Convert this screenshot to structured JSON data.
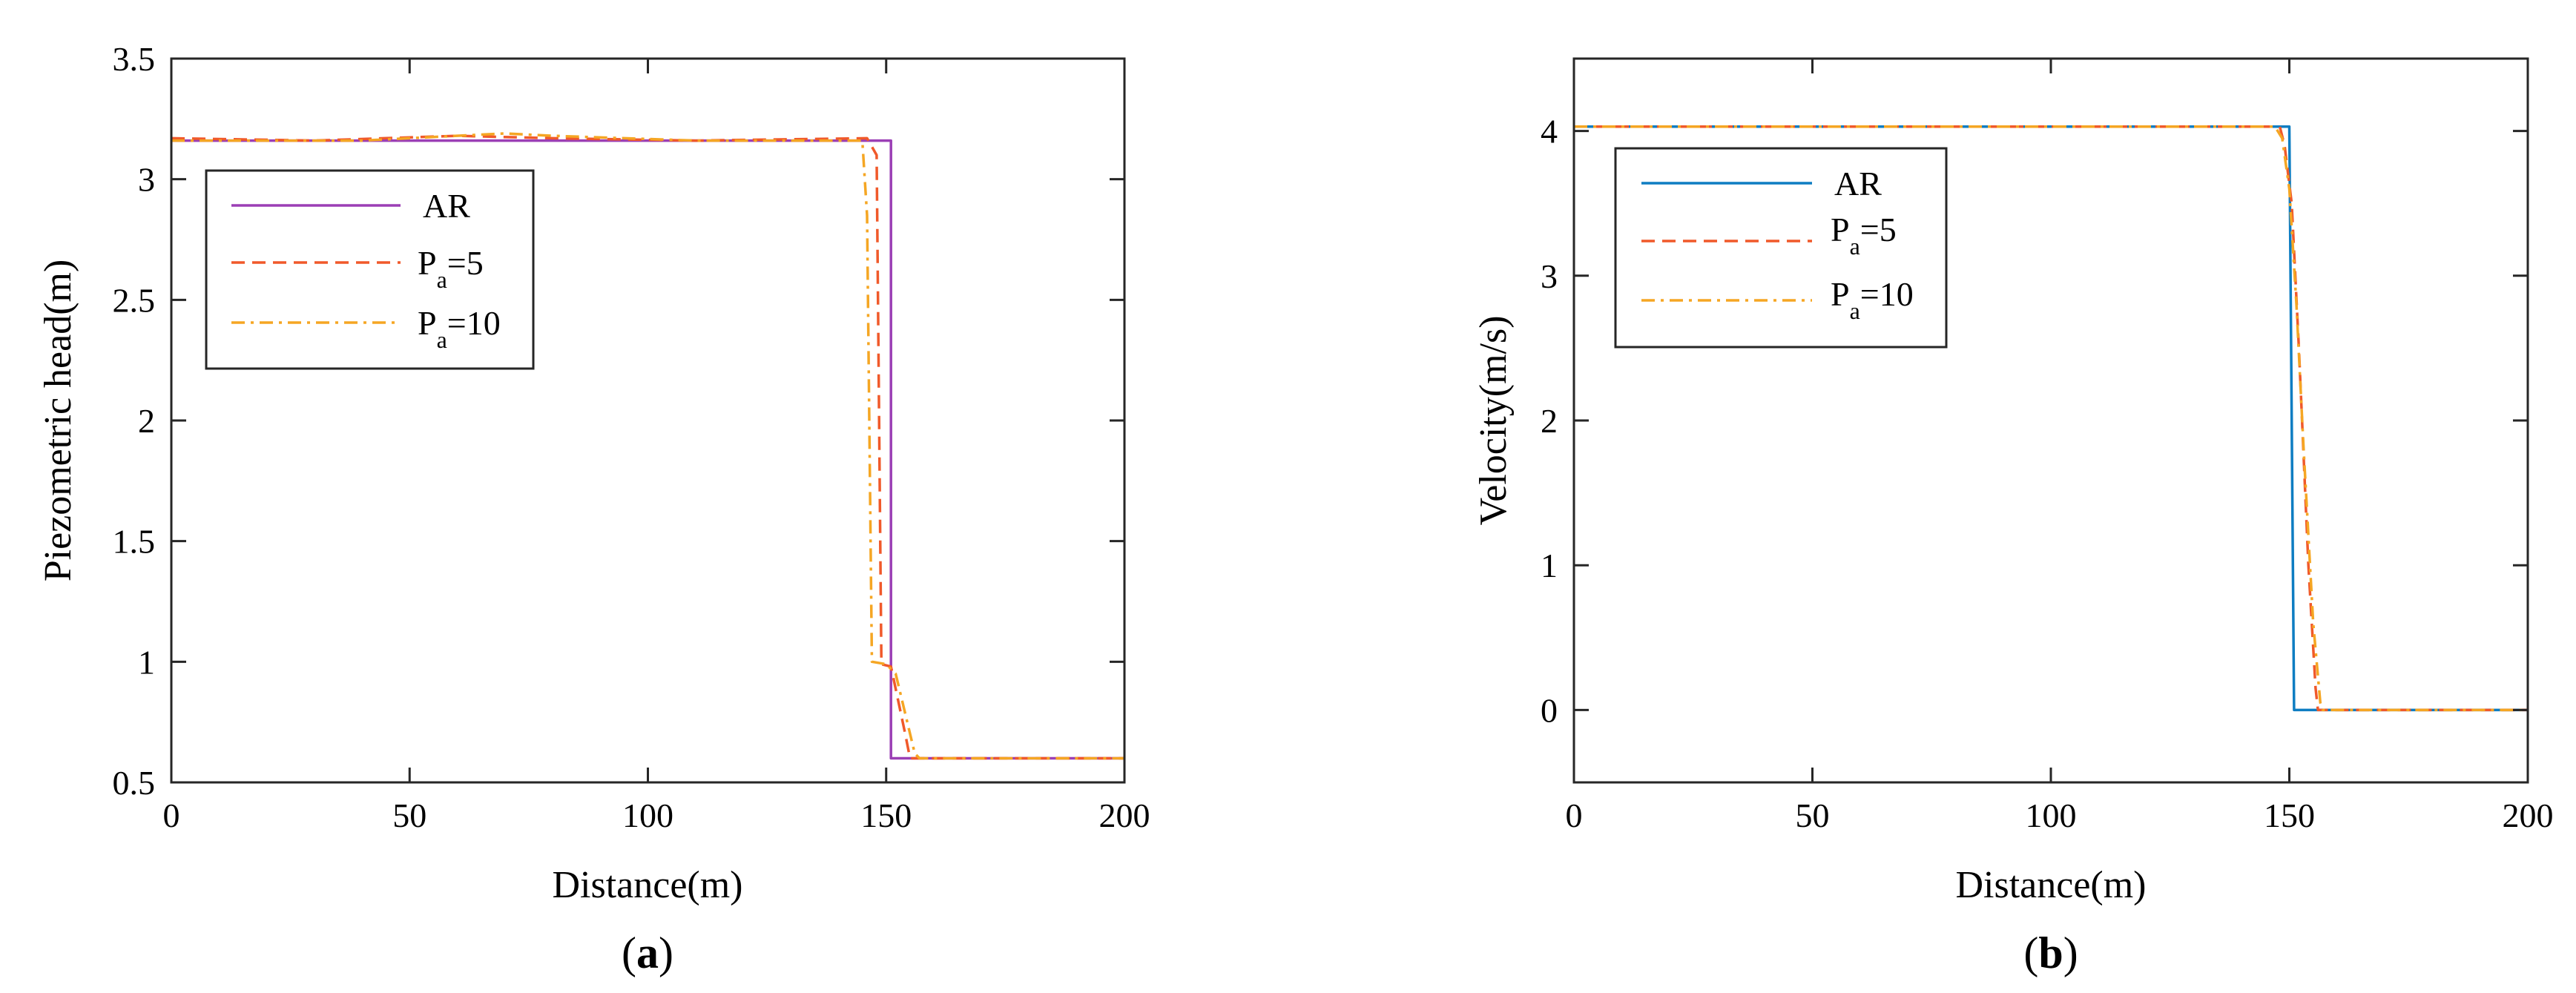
{
  "chart_data": [
    {
      "panel_label": "a",
      "type": "line",
      "xlabel": "Distance(m)",
      "ylabel": "Piezometric head(m)",
      "xlim": [
        0,
        200
      ],
      "ylim": [
        0.5,
        3.5
      ],
      "xticks": [
        0,
        50,
        100,
        150,
        200
      ],
      "yticks": [
        0.5,
        1,
        1.5,
        2,
        2.5,
        3,
        3.5
      ],
      "xtick_labels": [
        "0",
        "50",
        "100",
        "150",
        "200"
      ],
      "ytick_labels": [
        "0.5",
        "1",
        "1.5",
        "2",
        "2.5",
        "3",
        "3.5"
      ],
      "grid": false,
      "legend_position": "upper-left",
      "series": [
        {
          "legend_main": "AR",
          "legend_sub": "",
          "legend_tail": "",
          "color": "#9b3fb5",
          "dash": "solid",
          "points": [
            [
              0,
              3.16
            ],
            [
              151,
              3.16
            ],
            [
              151,
              0.6
            ],
            [
              200,
              0.6
            ]
          ]
        },
        {
          "legend_main": "P",
          "legend_sub": "a",
          "legend_tail": "=5",
          "color": "#f0592a",
          "dash": "dashed",
          "points": [
            [
              0,
              3.17
            ],
            [
              30,
              3.16
            ],
            [
              60,
              3.18
            ],
            [
              80,
              3.17
            ],
            [
              110,
              3.16
            ],
            [
              146,
              3.17
            ],
            [
              148,
              3.1
            ],
            [
              149,
              0.99
            ],
            [
              151,
              0.98
            ],
            [
              154,
              0.7
            ],
            [
              155,
              0.6
            ],
            [
              200,
              0.6
            ]
          ]
        },
        {
          "legend_main": "P",
          "legend_sub": "a",
          "legend_tail": "=10",
          "color": "#f5a623",
          "dash": "dashdot",
          "points": [
            [
              0,
              3.16
            ],
            [
              40,
              3.16
            ],
            [
              70,
              3.19
            ],
            [
              80,
              3.18
            ],
            [
              110,
              3.16
            ],
            [
              145,
              3.16
            ],
            [
              146,
              2.85
            ],
            [
              147,
              1.0
            ],
            [
              150,
              0.99
            ],
            [
              152,
              0.95
            ],
            [
              156,
              0.62
            ],
            [
              157,
              0.6
            ],
            [
              200,
              0.6
            ]
          ]
        }
      ]
    },
    {
      "panel_label": "b",
      "type": "line",
      "xlabel": "Distance(m)",
      "ylabel": "Velocity(m/s)",
      "xlim": [
        0,
        200
      ],
      "ylim": [
        -0.5,
        4.5
      ],
      "xticks": [
        0,
        50,
        100,
        150,
        200
      ],
      "yticks": [
        0,
        1,
        2,
        3,
        4
      ],
      "xtick_labels": [
        "0",
        "50",
        "100",
        "150",
        "200"
      ],
      "ytick_labels": [
        "0",
        "1",
        "2",
        "3",
        "4"
      ],
      "grid": false,
      "legend_position": "upper-left",
      "series": [
        {
          "legend_main": "AR",
          "legend_sub": "",
          "legend_tail": "",
          "color": "#0e7dc2",
          "dash": "solid",
          "points": [
            [
              0,
              4.03
            ],
            [
              150,
              4.03
            ],
            [
              151,
              0.0
            ],
            [
              200,
              0.0
            ]
          ]
        },
        {
          "legend_main": "P",
          "legend_sub": "a",
          "legend_tail": "=5",
          "color": "#f0592a",
          "dash": "dashed",
          "points": [
            [
              0,
              4.03
            ],
            [
              148,
              4.03
            ],
            [
              149,
              3.9
            ],
            [
              150.5,
              3.5
            ],
            [
              152,
              2.5
            ],
            [
              154,
              1.0
            ],
            [
              155.5,
              0.15
            ],
            [
              156,
              0.0
            ],
            [
              200,
              0.0
            ]
          ]
        },
        {
          "legend_main": "P",
          "legend_sub": "a",
          "legend_tail": "=10",
          "color": "#f5a623",
          "dash": "dashdot",
          "points": [
            [
              0,
              4.03
            ],
            [
              147,
              4.03
            ],
            [
              148.5,
              3.95
            ],
            [
              150,
              3.6
            ],
            [
              151.5,
              2.8
            ],
            [
              153,
              1.8
            ],
            [
              155,
              0.6
            ],
            [
              156.5,
              0.05
            ],
            [
              157,
              0.0
            ],
            [
              200,
              0.0
            ]
          ]
        }
      ]
    }
  ]
}
